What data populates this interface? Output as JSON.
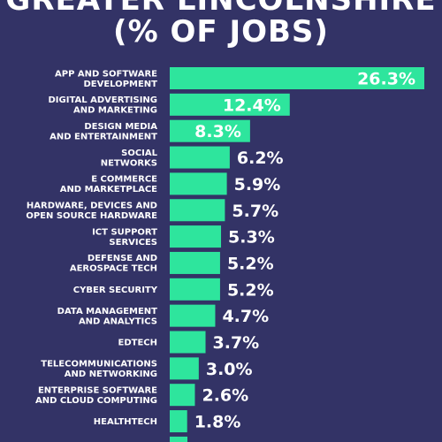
{
  "colors": {
    "background": "#333366",
    "bar": "#2ee59d",
    "text": "#ffffff"
  },
  "chart_data": {
    "type": "bar",
    "orientation": "horizontal",
    "title_line1": "GREATER LINCOLNSHIRE",
    "title_line2": "(% OF JOBS)",
    "categories": [
      [
        "APP AND SOFTWARE",
        "DEVELOPMENT"
      ],
      [
        "DIGITAL ADVERTISING",
        "AND MARKETING"
      ],
      [
        "DESIGN MEDIA",
        "AND ENTERTAINMENT"
      ],
      [
        "SOCIAL",
        "NETWORKS"
      ],
      [
        "E COMMERCE",
        "AND MARKETPLACE"
      ],
      [
        "HARDWARE, DEVICES AND",
        "OPEN SOURCE HARDWARE"
      ],
      [
        "ICT SUPPORT",
        "SERVICES"
      ],
      [
        "DEFENSE AND",
        "AEROSPACE TECH"
      ],
      [
        "CYBER SECURITY"
      ],
      [
        "DATA MANAGEMENT",
        "AND ANALYTICS"
      ],
      [
        "EDTECH"
      ],
      [
        "TELECOMMUNICATIONS",
        "AND NETWORKING"
      ],
      [
        "ENTERPRISE SOFTWARE",
        "AND CLOUD COMPUTING"
      ],
      [
        "HEALTHTECH"
      ]
    ],
    "values": [
      26.3,
      12.4,
      8.3,
      6.2,
      5.9,
      5.7,
      5.3,
      5.2,
      5.2,
      4.7,
      3.7,
      3.0,
      2.6,
      1.8
    ],
    "value_labels": [
      "26.3%",
      "12.4%",
      "8.3%",
      "6.2%",
      "5.9%",
      "5.7%",
      "5.3%",
      "5.2%",
      "5.2%",
      "4.7%",
      "3.7%",
      "3.0%",
      "2.6%",
      "1.8%"
    ],
    "value_unit": "%",
    "grid": false,
    "legend": "none"
  }
}
